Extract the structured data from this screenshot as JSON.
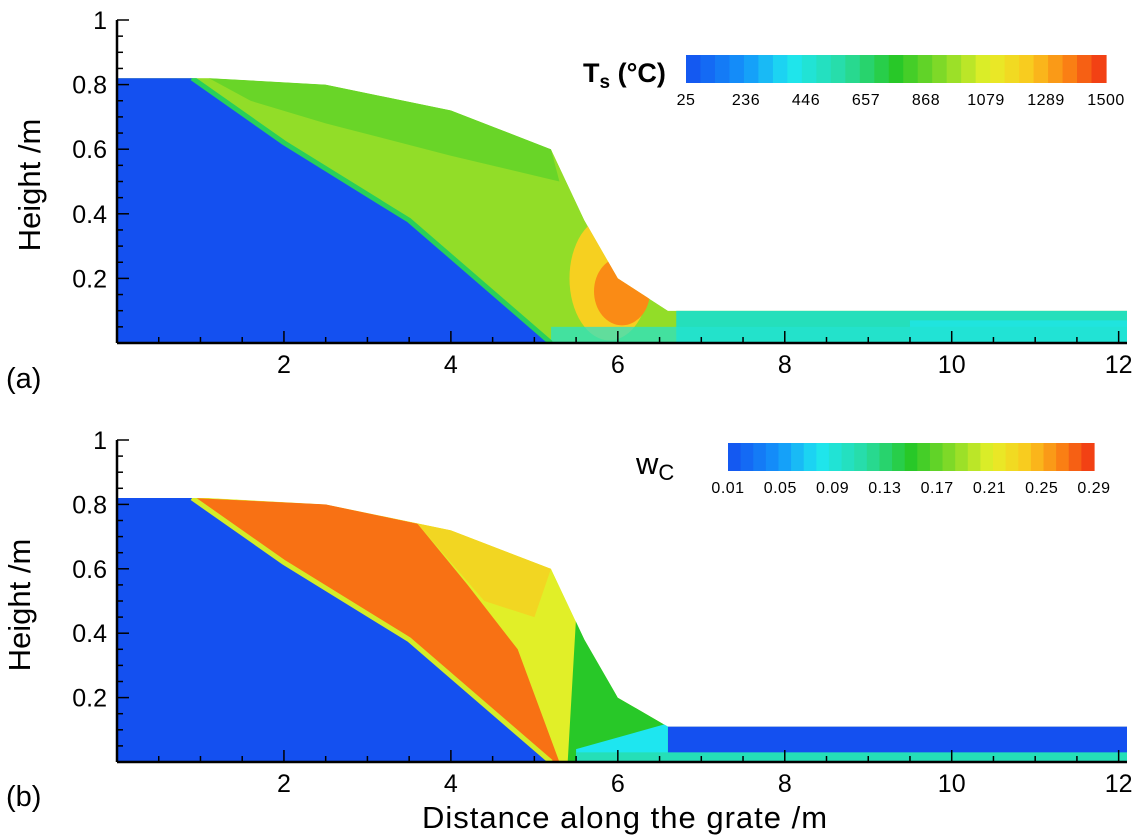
{
  "chart_data": [
    {
      "type": "heatmap",
      "panel_label": "(a)",
      "title": "",
      "xlabel": "",
      "ylabel": "Height /m",
      "xlim": [
        0,
        12.1
      ],
      "ylim": [
        0,
        1
      ],
      "x_ticks": [
        2,
        4,
        6,
        8,
        10,
        12
      ],
      "x_tick_labels": [
        "2",
        "4",
        "6",
        "8",
        "10",
        "12"
      ],
      "y_ticks": [
        0.2,
        0.4,
        0.6,
        0.8,
        1
      ],
      "y_tick_labels": [
        "0.2",
        "0.4",
        "0.6",
        "0.8",
        "1"
      ],
      "colorbar": {
        "label_main": "T",
        "label_sub": "s",
        "label_unit": " (°C)",
        "min": 25,
        "max": 1500,
        "ticks": [
          25,
          236,
          446,
          657,
          868,
          1079,
          1289,
          1500
        ],
        "tick_labels": [
          "25",
          "236",
          "446",
          "657",
          "868",
          "1079",
          "1289",
          "1500"
        ],
        "placement": "top-right"
      },
      "bed_surface": [
        [
          0,
          0.82
        ],
        [
          1.1,
          0.82
        ],
        [
          2.5,
          0.8
        ],
        [
          4,
          0.72
        ],
        [
          5.2,
          0.6
        ],
        [
          5.6,
          0.38
        ],
        [
          6.0,
          0.2
        ],
        [
          6.6,
          0.1
        ],
        [
          12.1,
          0.1
        ]
      ],
      "ignition_front": [
        [
          0.9,
          0.82
        ],
        [
          2.0,
          0.62
        ],
        [
          3.5,
          0.38
        ],
        [
          5.2,
          0.0
        ]
      ],
      "field_regions": [
        {
          "region": "unburnt fuel below ignition front",
          "value": 25
        },
        {
          "region": "upper bed near surface",
          "value": 860
        },
        {
          "region": "mid bed",
          "value": 950
        },
        {
          "region": "char burnout peak near x=6 m",
          "value": 1350
        },
        {
          "region": "ash layer x>7 m",
          "value": 520
        }
      ]
    },
    {
      "type": "heatmap",
      "panel_label": "(b)",
      "title": "",
      "xlabel": "Distance along the grate /m",
      "ylabel": "Height /m",
      "xlim": [
        0,
        12.1
      ],
      "ylim": [
        0,
        1
      ],
      "x_ticks": [
        2,
        4,
        6,
        8,
        10,
        12
      ],
      "x_tick_labels": [
        "2",
        "4",
        "6",
        "8",
        "10",
        "12"
      ],
      "y_ticks": [
        0.2,
        0.4,
        0.6,
        0.8,
        1
      ],
      "y_tick_labels": [
        "0.2",
        "0.4",
        "0.6",
        "0.8",
        "1"
      ],
      "colorbar": {
        "label_main": "w",
        "label_sub": "C",
        "label_unit": "",
        "min": 0.01,
        "max": 0.29,
        "ticks": [
          0.01,
          0.05,
          0.09,
          0.13,
          0.17,
          0.21,
          0.25,
          0.29
        ],
        "tick_labels": [
          "0.01",
          "0.05",
          "0.09",
          "0.13",
          "0.17",
          "0.21",
          "0.25",
          "0.29"
        ],
        "placement": "top-right"
      },
      "bed_surface": [
        [
          0,
          0.82
        ],
        [
          1.1,
          0.82
        ],
        [
          2.5,
          0.8
        ],
        [
          4,
          0.72
        ],
        [
          5.2,
          0.6
        ],
        [
          5.6,
          0.38
        ],
        [
          6.0,
          0.2
        ],
        [
          6.6,
          0.11
        ],
        [
          12.1,
          0.11
        ]
      ],
      "ignition_front": [
        [
          0.9,
          0.82
        ],
        [
          2.0,
          0.62
        ],
        [
          3.5,
          0.38
        ],
        [
          5.2,
          0.0
        ]
      ],
      "field_regions": [
        {
          "region": "unburnt fuel below ignition front",
          "value": 0.01
        },
        {
          "region": "char layer behind ignition front",
          "value": 0.27
        },
        {
          "region": "upper bed",
          "value": 0.21
        },
        {
          "region": "burnout zone",
          "value": 0.15
        },
        {
          "region": "ash bed x>6.6 m",
          "value": 0.01
        },
        {
          "region": "thin layer on grate x>5.5 m",
          "value": 0.1
        }
      ]
    }
  ]
}
